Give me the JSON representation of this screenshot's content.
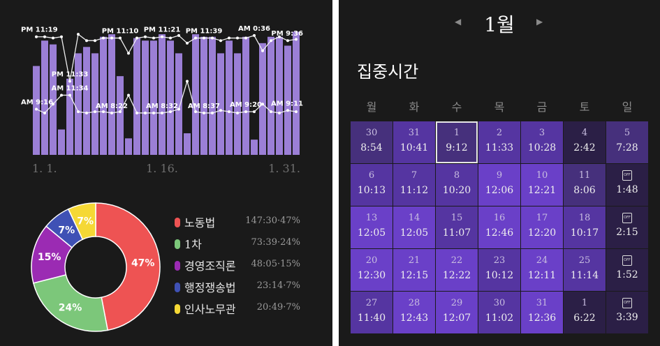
{
  "colors": {
    "background": "#1a1a1a",
    "bar": "#9b7fd6",
    "line": "#eeeeee",
    "donut_hole": "#1a1a1a"
  },
  "bar_chart": {
    "x_ticks": [
      "1. 1.",
      "1. 16.",
      "1. 31."
    ],
    "bar_values": [
      0.7,
      0.9,
      0.87,
      0.2,
      0.6,
      0.8,
      0.85,
      0.8,
      0.93,
      0.95,
      0.62,
      0.13,
      0.92,
      0.9,
      0.9,
      0.95,
      0.9,
      0.8,
      0.17,
      0.95,
      0.93,
      0.93,
      0.8,
      0.9,
      0.8,
      0.93,
      0.12,
      0.88,
      0.93,
      0.93,
      0.86,
      0.97
    ],
    "upper_line": [
      0.93,
      0.93,
      0.92,
      0.93,
      0.58,
      0.95,
      0.9,
      0.9,
      0.92,
      0.92,
      0.92,
      0.8,
      0.92,
      0.93,
      0.92,
      0.93,
      0.92,
      0.94,
      0.88,
      0.92,
      0.92,
      0.92,
      0.9,
      0.92,
      0.92,
      0.92,
      0.94,
      0.82,
      0.9,
      0.93,
      0.9,
      0.91
    ],
    "lower_line": [
      0.36,
      0.33,
      0.4,
      0.47,
      0.47,
      0.34,
      0.33,
      0.34,
      0.34,
      0.33,
      0.34,
      0.47,
      0.33,
      0.33,
      0.33,
      0.33,
      0.34,
      0.36,
      0.58,
      0.34,
      0.33,
      0.33,
      0.35,
      0.34,
      0.33,
      0.34,
      0.34,
      0.4,
      0.34,
      0.33,
      0.35,
      0.34
    ],
    "annotations": [
      {
        "text": "PM 11:19",
        "line": "upper",
        "index": 0
      },
      {
        "text": "PM 11:33",
        "line": "upper",
        "index": 4
      },
      {
        "text": "PM 11:10",
        "line": "upper",
        "index": 10
      },
      {
        "text": "PM 11:21",
        "line": "upper",
        "index": 15
      },
      {
        "text": "PM 11:39",
        "line": "upper",
        "index": 20
      },
      {
        "text": "AM 0:36",
        "line": "upper",
        "index": 26
      },
      {
        "text": "PM 9:36",
        "line": "upper",
        "index": 30
      },
      {
        "text": "AM 9:16",
        "line": "lower",
        "index": 0
      },
      {
        "text": "AM 11:34",
        "line": "lower",
        "index": 4
      },
      {
        "text": "AM 8:22",
        "line": "lower",
        "index": 9
      },
      {
        "text": "AM 8:32",
        "line": "lower",
        "index": 15
      },
      {
        "text": "AM 8:37",
        "line": "lower",
        "index": 20
      },
      {
        "text": "AM 9:20",
        "line": "lower",
        "index": 25
      },
      {
        "text": "AM 9:11",
        "line": "lower",
        "index": 30
      }
    ]
  },
  "chart_data": {
    "type": "pie",
    "categories": [
      "노동법",
      "1차",
      "경영조직론",
      "행정쟁송법",
      "인사노무관"
    ],
    "values": [
      47,
      24,
      15,
      7,
      7
    ],
    "slice_labels": [
      "47%",
      "24%",
      "15%",
      "7%",
      "7%"
    ],
    "colors": [
      "#ee5353",
      "#7cc77a",
      "#9b2bb3",
      "#3f51b5",
      "#f5d835"
    ]
  },
  "legend": [
    {
      "name": "노동법",
      "value": "147:30·47%",
      "color": "#ee5353"
    },
    {
      "name": "1차",
      "value": "73:39·24%",
      "color": "#7cc77a"
    },
    {
      "name": "경영조직론",
      "value": "48:05·15%",
      "color": "#9b2bb3"
    },
    {
      "name": "행정쟁송법",
      "value": "23:14·7%",
      "color": "#3f51b5"
    },
    {
      "name": "인사노무관",
      "value": "20:49·7%",
      "color": "#f5d835"
    }
  ],
  "calendar": {
    "month_title": "1월",
    "prev_icon": "chevron-left-icon",
    "next_icon": "chevron-right-icon",
    "section_title": "집중시간",
    "weekdays": [
      "월",
      "화",
      "수",
      "목",
      "금",
      "토",
      "일"
    ],
    "off_label": "OFF",
    "weeks": [
      [
        {
          "date": "30",
          "time": "8:54",
          "level": 1
        },
        {
          "date": "31",
          "time": "10:41",
          "level": 2
        },
        {
          "date": "1",
          "time": "9:12",
          "level": 1,
          "today": true
        },
        {
          "date": "2",
          "time": "11:33",
          "level": 2
        },
        {
          "date": "3",
          "time": "10:28",
          "level": 2
        },
        {
          "date": "4",
          "time": "2:42",
          "level": 0
        },
        {
          "date": "5",
          "time": "7:28",
          "level": 1
        }
      ],
      [
        {
          "date": "6",
          "time": "10:13",
          "level": 2
        },
        {
          "date": "7",
          "time": "11:12",
          "level": 2
        },
        {
          "date": "8",
          "time": "10:20",
          "level": 2
        },
        {
          "date": "9",
          "time": "12:06",
          "level": 3
        },
        {
          "date": "10",
          "time": "12:21",
          "level": 3
        },
        {
          "date": "11",
          "time": "8:06",
          "level": 1
        },
        {
          "off": true,
          "time": "1:48",
          "level": 0
        }
      ],
      [
        {
          "date": "13",
          "time": "12:05",
          "level": 3
        },
        {
          "date": "14",
          "time": "12:05",
          "level": 3
        },
        {
          "date": "15",
          "time": "11:07",
          "level": 2
        },
        {
          "date": "16",
          "time": "12:46",
          "level": 3
        },
        {
          "date": "17",
          "time": "12:20",
          "level": 3
        },
        {
          "date": "18",
          "time": "10:17",
          "level": 2
        },
        {
          "off": true,
          "time": "2:15",
          "level": 0
        }
      ],
      [
        {
          "date": "20",
          "time": "12:30",
          "level": 3
        },
        {
          "date": "21",
          "time": "12:15",
          "level": 3
        },
        {
          "date": "22",
          "time": "12:22",
          "level": 3
        },
        {
          "date": "23",
          "time": "10:12",
          "level": 2
        },
        {
          "date": "24",
          "time": "12:11",
          "level": 3
        },
        {
          "date": "25",
          "time": "11:14",
          "level": 2
        },
        {
          "off": true,
          "time": "1:52",
          "level": 0
        }
      ],
      [
        {
          "date": "27",
          "time": "11:40",
          "level": 2
        },
        {
          "date": "28",
          "time": "12:43",
          "level": 3
        },
        {
          "date": "29",
          "time": "12:07",
          "level": 3
        },
        {
          "date": "30",
          "time": "11:02",
          "level": 2
        },
        {
          "date": "31",
          "time": "12:36",
          "level": 3
        },
        {
          "date": "1",
          "time": "6:22",
          "level": 0
        },
        {
          "off": true,
          "time": "3:39",
          "level": 0
        }
      ]
    ],
    "level_colors": [
      "#2b1f46",
      "#46307c",
      "#5535a1",
      "#6a40c8"
    ]
  }
}
